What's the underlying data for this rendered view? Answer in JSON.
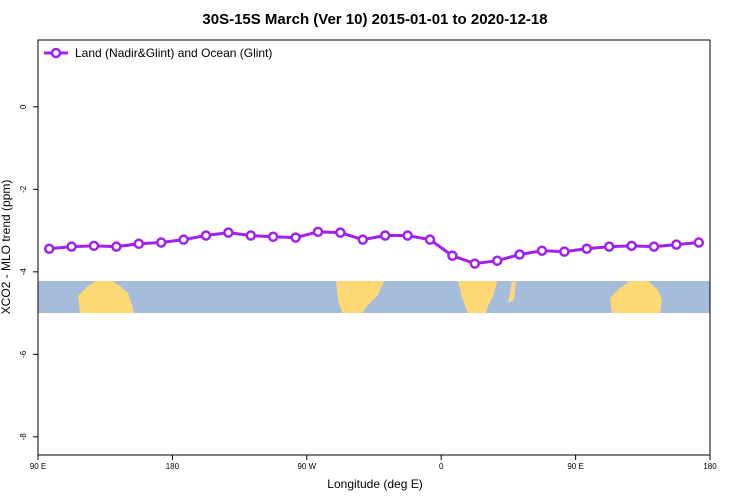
{
  "chart_data": {
    "type": "line",
    "title": "30S-15S March (Ver 10)   2015-01-01 to 2020-12-18",
    "x_label": "Longitude (deg E)",
    "y_label": "XCO2 - MLO trend (ppm)",
    "x": [
      97.5,
      112.5,
      127.5,
      142.5,
      157.5,
      172.5,
      187.5,
      202.5,
      217.5,
      232.5,
      247.5,
      262.5,
      277.5,
      292.5,
      307.5,
      322.5,
      337.5,
      352.5,
      367.5,
      382.5,
      397.5,
      412.5,
      427.5,
      442.5,
      457.5,
      472.5,
      487.5,
      502.5,
      517.5,
      532.5
    ],
    "series": [
      {
        "name": "Land (Nadir&Glint) and Ocean (Glint)",
        "color": "#a020f0",
        "values": [
          -3.44,
          -3.39,
          -3.37,
          -3.39,
          -3.32,
          -3.29,
          -3.22,
          -3.12,
          -3.05,
          -3.12,
          -3.15,
          -3.17,
          -3.03,
          -3.05,
          -3.22,
          -3.12,
          -3.12,
          -3.22,
          -3.61,
          -3.8,
          -3.73,
          -3.58,
          -3.49,
          -3.51,
          -3.44,
          -3.39,
          -3.37,
          -3.39,
          -3.34,
          -3.29
        ]
      }
    ],
    "xlim": [
      90,
      540
    ],
    "xticks": [
      {
        "value": 90,
        "label": "90 E"
      },
      180,
      {
        "value": 270,
        "label": "90 W"
      },
      {
        "value": 360,
        "label": "0"
      },
      {
        "value": 450,
        "label": "90 E"
      },
      {
        "value": 540,
        "label": "180"
      }
    ],
    "ylim": [
      -8.44,
      1.62
    ],
    "yticks": [
      0,
      -2,
      -4,
      -6,
      -8
    ],
    "legend": "top-left"
  }
}
